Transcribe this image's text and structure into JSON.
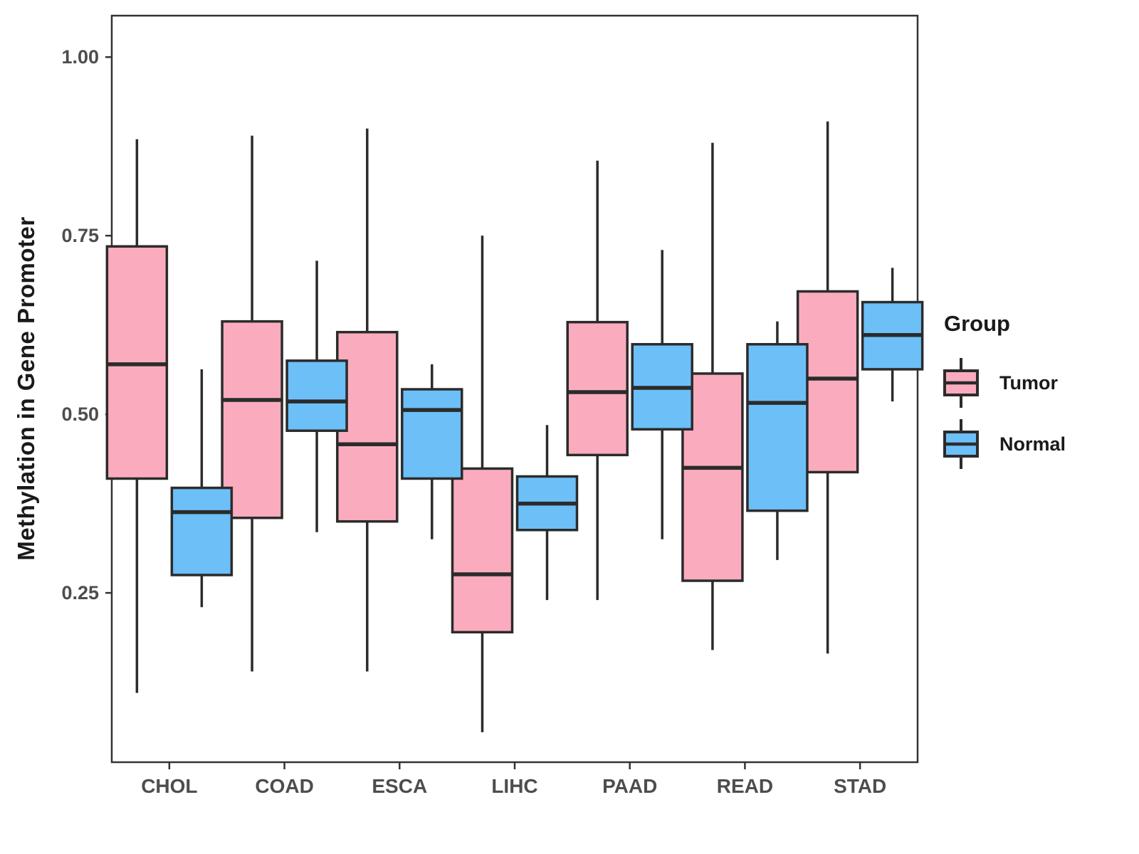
{
  "chart_data": {
    "type": "boxplot",
    "title": "",
    "xlabel": "",
    "ylabel": "Methylation in Gene Promoter",
    "categories": [
      "CHOL",
      "COAD",
      "ESCA",
      "LIHC",
      "PAAD",
      "READ",
      "STAD"
    ],
    "y_ticks": [
      0.25,
      0.5,
      0.75,
      1.0
    ],
    "y_tick_labels": [
      "0.25",
      "0.50",
      "0.75",
      "1.00"
    ],
    "ylim": [
      0.013,
      1.058
    ],
    "grid": "off",
    "legend": {
      "title": "Group",
      "position": "right",
      "entries": [
        {
          "label": "Tumor",
          "color": "#FAACBE"
        },
        {
          "label": "Normal",
          "color": "#6DBFF8"
        }
      ]
    },
    "series": [
      {
        "name": "Tumor",
        "color": "#FAACBE",
        "boxes": [
          {
            "category": "CHOL",
            "min": 0.11,
            "q1": 0.41,
            "median": 0.57,
            "q3": 0.735,
            "max": 0.885
          },
          {
            "category": "COAD",
            "min": 0.14,
            "q1": 0.355,
            "median": 0.52,
            "q3": 0.63,
            "max": 0.89
          },
          {
            "category": "ESCA",
            "min": 0.14,
            "q1": 0.35,
            "median": 0.458,
            "q3": 0.615,
            "max": 0.9
          },
          {
            "category": "LIHC",
            "min": 0.055,
            "q1": 0.195,
            "median": 0.276,
            "q3": 0.424,
            "max": 0.75
          },
          {
            "category": "PAAD",
            "min": 0.24,
            "q1": 0.443,
            "median": 0.531,
            "q3": 0.629,
            "max": 0.855
          },
          {
            "category": "READ",
            "min": 0.17,
            "q1": 0.267,
            "median": 0.425,
            "q3": 0.557,
            "max": 0.88
          },
          {
            "category": "STAD",
            "min": 0.165,
            "q1": 0.419,
            "median": 0.55,
            "q3": 0.672,
            "max": 0.91
          }
        ]
      },
      {
        "name": "Normal",
        "color": "#6DBFF8",
        "boxes": [
          {
            "category": "CHOL",
            "min": 0.23,
            "q1": 0.275,
            "median": 0.363,
            "q3": 0.397,
            "max": 0.563
          },
          {
            "category": "COAD",
            "min": 0.335,
            "q1": 0.477,
            "median": 0.518,
            "q3": 0.575,
            "max": 0.715
          },
          {
            "category": "ESCA",
            "min": 0.325,
            "q1": 0.41,
            "median": 0.506,
            "q3": 0.535,
            "max": 0.57
          },
          {
            "category": "LIHC",
            "min": 0.24,
            "q1": 0.338,
            "median": 0.375,
            "q3": 0.413,
            "max": 0.485
          },
          {
            "category": "PAAD",
            "min": 0.325,
            "q1": 0.479,
            "median": 0.537,
            "q3": 0.598,
            "max": 0.73
          },
          {
            "category": "READ",
            "min": 0.296,
            "q1": 0.365,
            "median": 0.516,
            "q3": 0.598,
            "max": 0.63
          },
          {
            "category": "STAD",
            "min": 0.518,
            "q1": 0.563,
            "median": 0.611,
            "q3": 0.657,
            "max": 0.705
          }
        ]
      }
    ],
    "style_colors": {
      "box_stroke": "#2B2B2B",
      "panel_border": "#333333",
      "axis_text": "#4D4D4D",
      "title_text": "#1A1A1A",
      "background": "#FFFFFF"
    }
  }
}
